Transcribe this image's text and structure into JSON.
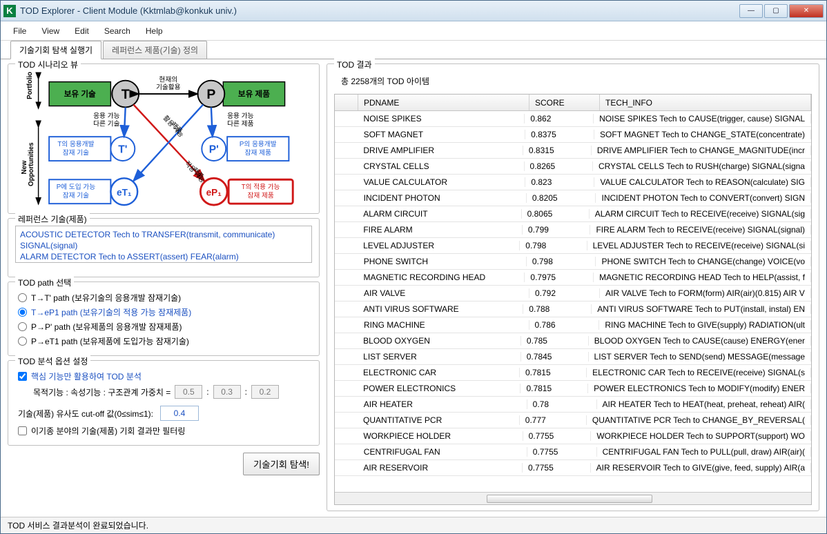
{
  "window": {
    "title": "TOD Explorer - Client Module (Kktmlab@konkuk univ.)",
    "app_icon_letter": "K"
  },
  "menu": {
    "file": "File",
    "view": "View",
    "edit": "Edit",
    "search": "Search",
    "help": "Help"
  },
  "tabs": {
    "executor": "기술기회 탐색 실행기",
    "reference": "레퍼런스 제품(기술) 정의"
  },
  "scenario": {
    "title": "TOD 시나리오 뷰",
    "portfolio_label": "Portfolio",
    "new_opp_label": "New\nOpportunities",
    "owned_tech": "보유 기술",
    "owned_prod": "보유 제품",
    "current_util": "현재의\n기술활용",
    "T": "T",
    "P": "P",
    "Tp": "T'",
    "Pp": "P'",
    "eT1": "eT₁",
    "eP1": "eP₁",
    "app_other_tech": "응용 가능\n다른 기술",
    "util_possible": "활용 가능\n제품",
    "app_other_prod": "응용 가능\n다른 제품",
    "t_dev_latent": "T의 응용개발\n잠재 기술",
    "p_dev_latent": "P의 응용개발\n잠재 제품",
    "app_possible_prod": "적용 가능\n제품",
    "p_intro_latent": "P에 도입 가능\n잠재 기술",
    "t_app_latent": "T의 적용 가능\n잠재 제품",
    "colors": {
      "green": "#4caf50",
      "blue": "#1e5fd8",
      "red": "#d01818",
      "gray_fill": "#c8c8c8",
      "black": "#000000"
    }
  },
  "reference": {
    "title": "레퍼런스 기술(제품)",
    "items": [
      "ACOUSTIC DETECTOR Tech to TRANSFER(transmit, communicate) SIGNAL(signal)",
      "ALARM DETECTOR Tech to ASSERT(assert) FEAR(alarm)"
    ]
  },
  "path": {
    "title": "TOD path 선택",
    "opt1": "T→T' path (보유기술의 응용개발 잠재기술)",
    "opt2": "T→eP1 path (보유기술의 적용 가능 잠재제품)",
    "opt3": "P→P' path (보유제품의 응용개발 잠재제품)",
    "opt4": "P→eT1 path (보유제품에 도입가능 잠재기술)",
    "selected": 2
  },
  "options": {
    "title": "TOD 분석 옵션 설정",
    "core_only": "핵심 기능만 활용하여 TOD 분석",
    "core_only_checked": true,
    "weights_label": "목적기능 : 속성기능 : 구조관계 가중치 =",
    "w1": "0.5",
    "colon1": ":",
    "w2": "0.3",
    "colon2": ":",
    "w3": "0.2",
    "cutoff_label": "기술(제품) 유사도 cut-off 값(0≤sim≤1):",
    "cutoff_value": "0.4",
    "cross_filter": "이기종 분야의 기술(제품) 기회 결과만 필터링",
    "cross_filter_checked": false
  },
  "search_button": "기술기회 탐색!",
  "results": {
    "title": "TOD 결과",
    "count_text": "총 2258개의 TOD 아이템",
    "columns": {
      "pdname": "PDNAME",
      "score": "SCORE",
      "tech_info": "TECH_INFO"
    },
    "rows": [
      {
        "pdname": "NOISE SPIKES",
        "score": "0.862",
        "info": "NOISE SPIKES Tech to CAUSE(trigger, cause) SIGNAL"
      },
      {
        "pdname": "SOFT MAGNET",
        "score": "0.8375",
        "info": "SOFT MAGNET Tech to CHANGE_STATE(concentrate)"
      },
      {
        "pdname": "DRIVE AMPLIFIER",
        "score": "0.8315",
        "info": "DRIVE AMPLIFIER Tech to CHANGE_MAGNITUDE(incr"
      },
      {
        "pdname": "CRYSTAL CELLS",
        "score": "0.8265",
        "info": "CRYSTAL CELLS Tech to RUSH(charge) SIGNAL(signa"
      },
      {
        "pdname": "VALUE CALCULATOR",
        "score": "0.823",
        "info": "VALUE CALCULATOR Tech to REASON(calculate) SIG"
      },
      {
        "pdname": "INCIDENT PHOTON",
        "score": "0.8205",
        "info": "INCIDENT PHOTON Tech to CONVERT(convert) SIGN"
      },
      {
        "pdname": "ALARM CIRCUIT",
        "score": "0.8065",
        "info": "ALARM CIRCUIT Tech to RECEIVE(receive) SIGNAL(sig"
      },
      {
        "pdname": "FIRE ALARM",
        "score": "0.799",
        "info": "FIRE ALARM Tech to RECEIVE(receive) SIGNAL(signal)"
      },
      {
        "pdname": "LEVEL ADJUSTER",
        "score": "0.798",
        "info": "LEVEL ADJUSTER Tech to RECEIVE(receive) SIGNAL(si"
      },
      {
        "pdname": "PHONE SWITCH",
        "score": "0.798",
        "info": "PHONE SWITCH Tech to CHANGE(change) VOICE(vo"
      },
      {
        "pdname": "MAGNETIC RECORDING HEAD",
        "score": "0.7975",
        "info": "MAGNETIC RECORDING HEAD Tech to HELP(assist, f"
      },
      {
        "pdname": "AIR VALVE",
        "score": "0.792",
        "info": "AIR VALVE Tech to FORM(form) AIR(air)(0.815) AIR V"
      },
      {
        "pdname": "ANTI VIRUS SOFTWARE",
        "score": "0.788",
        "info": "ANTI VIRUS SOFTWARE Tech to PUT(install, instal) EN"
      },
      {
        "pdname": "RING MACHINE",
        "score": "0.786",
        "info": "RING MACHINE Tech to GIVE(supply) RADIATION(ult"
      },
      {
        "pdname": "BLOOD OXYGEN",
        "score": "0.785",
        "info": "BLOOD OXYGEN Tech to CAUSE(cause) ENERGY(ener"
      },
      {
        "pdname": "LIST SERVER",
        "score": "0.7845",
        "info": "LIST SERVER Tech to SEND(send) MESSAGE(message"
      },
      {
        "pdname": "ELECTRONIC CAR",
        "score": "0.7815",
        "info": "ELECTRONIC CAR Tech to RECEIVE(receive) SIGNAL(s"
      },
      {
        "pdname": "POWER ELECTRONICS",
        "score": "0.7815",
        "info": "POWER ELECTRONICS Tech to MODIFY(modify) ENER"
      },
      {
        "pdname": "AIR HEATER",
        "score": "0.78",
        "info": "AIR HEATER Tech to HEAT(heat, preheat, reheat) AIR("
      },
      {
        "pdname": "QUANTITATIVE PCR",
        "score": "0.777",
        "info": "QUANTITATIVE PCR Tech to CHANGE_BY_REVERSAL("
      },
      {
        "pdname": "WORKPIECE HOLDER",
        "score": "0.7755",
        "info": "WORKPIECE HOLDER Tech to SUPPORT(support) WO"
      },
      {
        "pdname": "CENTRIFUGAL FAN",
        "score": "0.7755",
        "info": "CENTRIFUGAL FAN Tech to PULL(pull, draw) AIR(air)("
      },
      {
        "pdname": "AIR RESERVOIR",
        "score": "0.7755",
        "info": "AIR RESERVOIR Tech to GIVE(give, feed, supply) AIR(a"
      }
    ]
  },
  "status": "TOD 서비스 결과분석이 완료되었습니다."
}
